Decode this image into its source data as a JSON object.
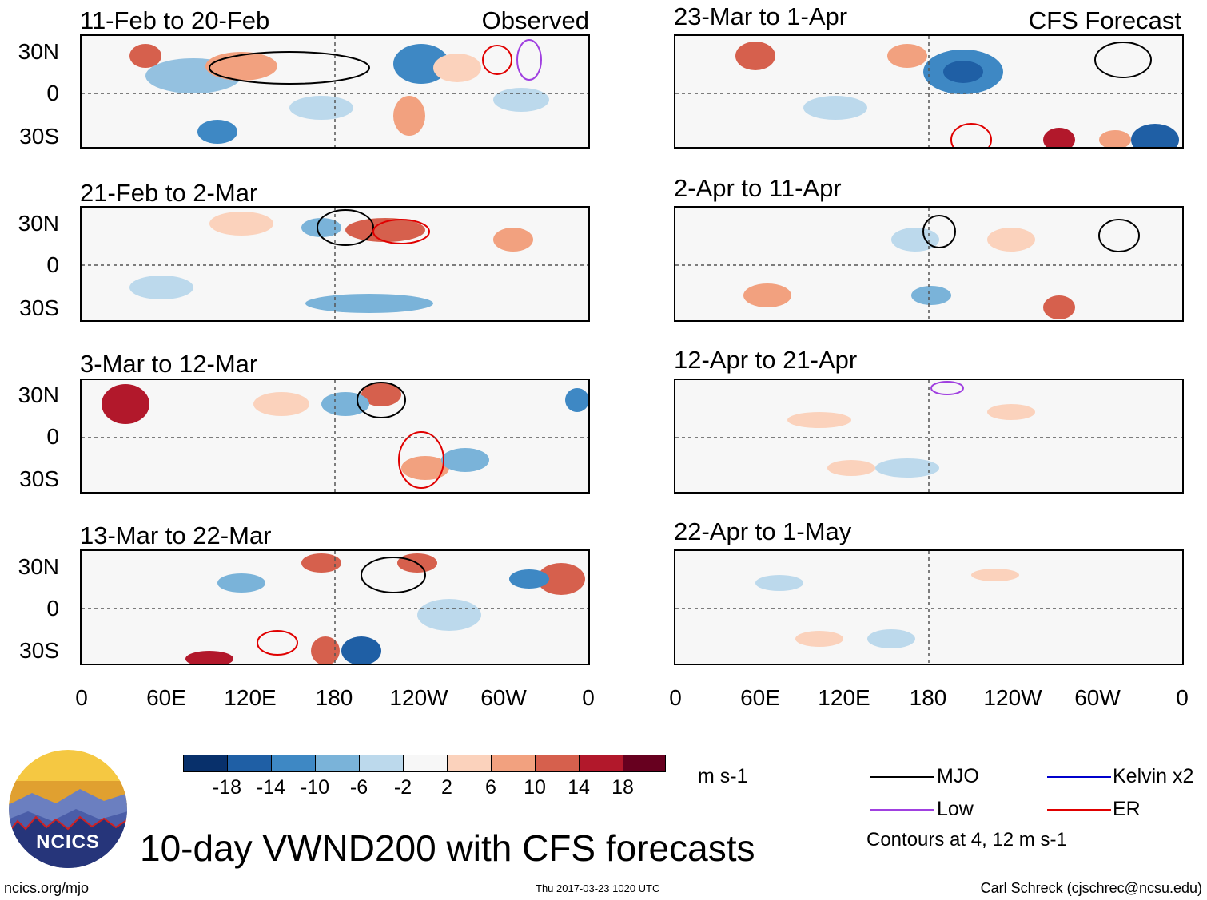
{
  "panels_left": [
    {
      "title": "11-Feb to 20-Feb",
      "tag": "Observed"
    },
    {
      "title": "21-Feb to 2-Mar",
      "tag": ""
    },
    {
      "title": "3-Mar to 12-Mar",
      "tag": ""
    },
    {
      "title": "13-Mar to 22-Mar",
      "tag": ""
    }
  ],
  "panels_right": [
    {
      "title": "23-Mar to 1-Apr",
      "tag": "CFS Forecast"
    },
    {
      "title": "2-Apr to 11-Apr",
      "tag": ""
    },
    {
      "title": "12-Apr to 21-Apr",
      "tag": ""
    },
    {
      "title": "22-Apr to 1-May",
      "tag": ""
    }
  ],
  "lat_labels": [
    "30N",
    "0",
    "30S"
  ],
  "lon_labels": [
    "0",
    "60E",
    "120E",
    "180",
    "120W",
    "60W",
    "0"
  ],
  "colorbar": {
    "ticks": [
      "-18",
      "-14",
      "-10",
      "-6",
      "-2",
      "2",
      "6",
      "10",
      "14",
      "18"
    ],
    "colors": [
      "#08306b",
      "#1f5fa5",
      "#3e88c4",
      "#7ab3d9",
      "#bcd9ec",
      "#f7f7f7",
      "#fbd2bc",
      "#f2a17f",
      "#d6604d",
      "#b2182b",
      "#67001f"
    ],
    "units": "m s-1"
  },
  "legend": {
    "items": [
      {
        "label": "MJO",
        "color": "#000000"
      },
      {
        "label": "Kelvin x2",
        "color": "#0000cc"
      },
      {
        "label": "Low",
        "color": "#a040e0"
      },
      {
        "label": "ER",
        "color": "#e00000"
      }
    ],
    "note": "Contours at 4, 12 m s-1"
  },
  "logo_text": "NCICS",
  "main_title": "10-day VWND200 with CFS forecasts",
  "footer": {
    "left": "ncics.org/mjo",
    "center": "Thu 2017-03-23 1020 UTC",
    "right": "Carl Schreck (cjschrec@ncsu.edu)"
  }
}
